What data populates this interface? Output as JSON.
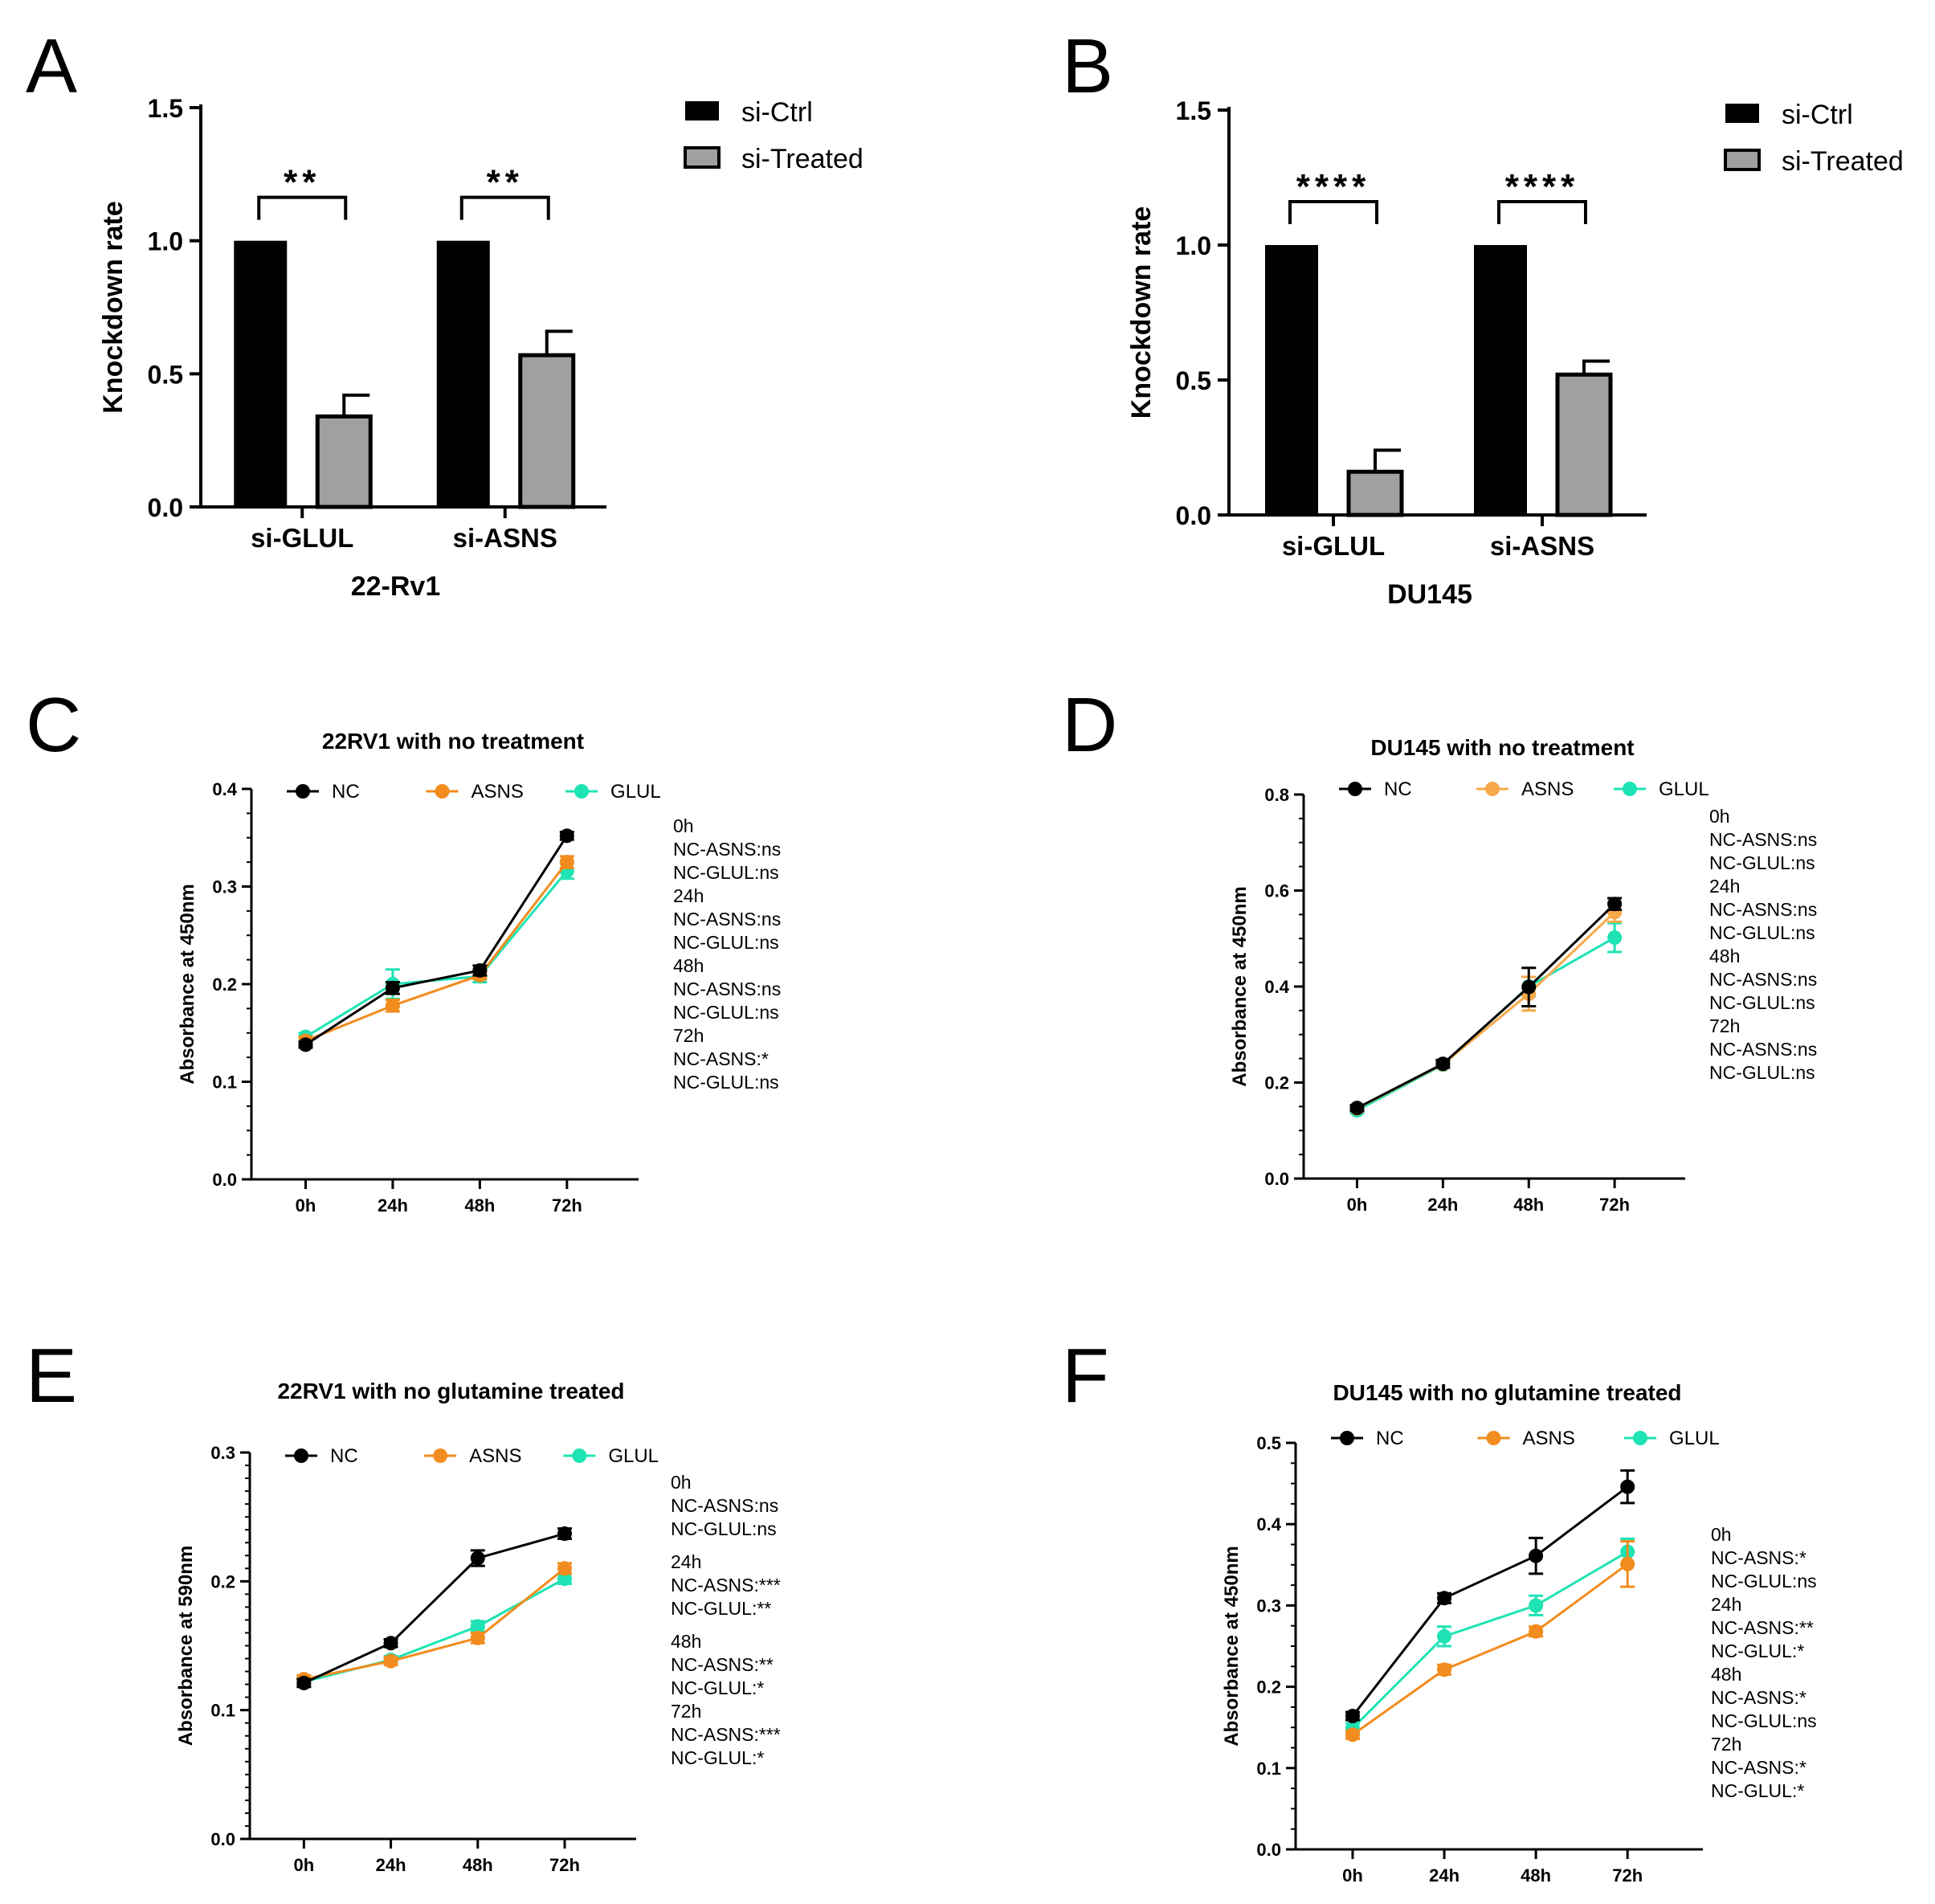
{
  "figure": {
    "panels": [
      {
        "letter": "A",
        "stats_note": [],
        "chart_data": {
          "type": "bar",
          "title": "",
          "xlabel": "22-Rv1",
          "ylabel": "Knockdown rate",
          "ylim": [
            0,
            1.5
          ],
          "yticks": [
            "0.0",
            "0.5",
            "1.0",
            "1.5"
          ],
          "categories": [
            "si-GLUL",
            "si-ASNS"
          ],
          "series": [
            {
              "name": "si-Ctrl",
              "color": "#000000",
              "values": [
                1.0,
                1.0
              ],
              "errors": [
                0,
                0
              ]
            },
            {
              "name": "si-Treated",
              "color": "#a0a0a0",
              "values": [
                0.34,
                0.57
              ],
              "errors": [
                0.08,
                0.09
              ]
            }
          ],
          "significance": [
            "**",
            "**"
          ],
          "legend": "top-right"
        }
      },
      {
        "letter": "B",
        "stats_note": [],
        "chart_data": {
          "type": "bar",
          "title": "",
          "xlabel": "DU145",
          "ylabel": "Knockdown rate",
          "ylim": [
            0,
            1.5
          ],
          "yticks": [
            "0.0",
            "0.5",
            "1.0",
            "1.5"
          ],
          "categories": [
            "si-GLUL",
            "si-ASNS"
          ],
          "series": [
            {
              "name": "si-Ctrl",
              "color": "#000000",
              "values": [
                1.0,
                1.0
              ],
              "errors": [
                0,
                0
              ]
            },
            {
              "name": "si-Treated",
              "color": "#a0a0a0",
              "values": [
                0.16,
                0.52
              ],
              "errors": [
                0.08,
                0.05
              ]
            }
          ],
          "significance": [
            "****",
            "****"
          ],
          "legend": "top-right"
        }
      },
      {
        "letter": "C",
        "stats_note": [
          "0h",
          "NC-ASNS:ns",
          "NC-GLUL:ns",
          "24h",
          "NC-ASNS:ns",
          "NC-GLUL:ns",
          "48h",
          "NC-ASNS:ns",
          "NC-GLUL:ns",
          "72h",
          "NC-ASNS:*",
          "NC-GLUL:ns"
        ],
        "chart_data": {
          "type": "line",
          "title": "22RV1 with no treatment",
          "xlabel": "",
          "ylabel": "Absorbance at 450nm",
          "ylim": [
            0,
            0.4
          ],
          "yticks": [
            "0.0",
            "0.1",
            "0.2",
            "0.3",
            "0.4"
          ],
          "categories": [
            "0h",
            "24h",
            "48h",
            "72h"
          ],
          "series": [
            {
              "name": "NC",
              "color": "#000000",
              "values": [
                0.138,
                0.196,
                0.214,
                0.352
              ],
              "errors": [
                0.003,
                0.006,
                0.005,
                0.004
              ]
            },
            {
              "name": "ASNS",
              "color": "#f28c1e",
              "values": [
                0.142,
                0.178,
                0.209,
                0.325
              ],
              "errors": [
                0.004,
                0.006,
                0.004,
                0.006
              ]
            },
            {
              "name": "GLUL",
              "color": "#1ee3b4",
              "values": [
                0.146,
                0.2,
                0.208,
                0.316
              ],
              "errors": [
                0.004,
                0.015,
                0.006,
                0.008
              ]
            }
          ],
          "legend": "top"
        }
      },
      {
        "letter": "D",
        "stats_note": [
          "0h",
          "NC-ASNS:ns",
          "NC-GLUL:ns",
          "24h",
          "NC-ASNS:ns",
          "NC-GLUL:ns",
          "48h",
          "NC-ASNS:ns",
          "NC-GLUL:ns",
          "72h",
          "NC-ASNS:ns",
          "NC-GLUL:ns"
        ],
        "chart_data": {
          "type": "line",
          "title": "DU145 with no  treatment",
          "xlabel": "",
          "ylabel": "Absorbance at 450nm",
          "ylim": [
            0,
            0.8
          ],
          "yticks": [
            "0.0",
            "0.2",
            "0.4",
            "0.6",
            "0.8"
          ],
          "categories": [
            "0h",
            "24h",
            "48h",
            "72h"
          ],
          "series": [
            {
              "name": "NC",
              "color": "#000000",
              "values": [
                0.147,
                0.239,
                0.399,
                0.572
              ],
              "errors": [
                0.006,
                0.008,
                0.04,
                0.012
              ]
            },
            {
              "name": "ASNS",
              "color": "#f7a94a",
              "values": [
                0.146,
                0.238,
                0.385,
                0.555
              ],
              "errors": [
                0.006,
                0.006,
                0.035,
                0.02
              ]
            },
            {
              "name": "GLUL",
              "color": "#1ee3b4",
              "values": [
                0.142,
                0.237,
                0.4,
                0.502
              ],
              "errors": [
                0.006,
                0.006,
                0.02,
                0.03
              ]
            }
          ],
          "legend": "top"
        }
      },
      {
        "letter": "E",
        "stats_note": [
          "0h",
          "NC-ASNS:ns",
          "NC-GLUL:ns",
          "24h",
          "NC-ASNS:***",
          "NC-GLUL:**",
          "48h",
          "NC-ASNS:**",
          "NC-GLUL:*",
          "72h",
          "NC-ASNS:***",
          "NC-GLUL:*"
        ],
        "chart_data": {
          "type": "line",
          "title": "22RV1 with no glutamine treated",
          "xlabel": "",
          "ylabel": "Absorbance at 590nm",
          "ylim": [
            0,
            0.3
          ],
          "yticks": [
            "0.0",
            "0.1",
            "0.2",
            "0.3"
          ],
          "categories": [
            "0h",
            "24h",
            "48h",
            "72h"
          ],
          "series": [
            {
              "name": "NC",
              "color": "#000000",
              "values": [
                0.121,
                0.152,
                0.218,
                0.237
              ],
              "errors": [
                0.003,
                0.003,
                0.006,
                0.004
              ]
            },
            {
              "name": "ASNS",
              "color": "#f28c1e",
              "values": [
                0.124,
                0.138,
                0.156,
                0.21
              ],
              "errors": [
                0.003,
                0.003,
                0.004,
                0.004
              ]
            },
            {
              "name": "GLUL",
              "color": "#1ee3b4",
              "values": [
                0.122,
                0.139,
                0.165,
                0.202
              ],
              "errors": [
                0.003,
                0.003,
                0.004,
                0.004
              ]
            }
          ],
          "legend": "top"
        }
      },
      {
        "letter": "F",
        "stats_note": [
          "0h",
          "NC-ASNS:*",
          "NC-GLUL:ns",
          "24h",
          "NC-ASNS:**",
          "NC-GLUL:*",
          "48h",
          "NC-ASNS:*",
          "NC-GLUL:ns",
          "72h",
          "NC-ASNS:*",
          "NC-GLUL:*"
        ],
        "chart_data": {
          "type": "line",
          "title": "DU145 with no glutamine treated",
          "xlabel": "",
          "ylabel": "Absorbance at 450nm",
          "ylim": [
            0,
            0.5
          ],
          "yticks": [
            "0.0",
            "0.1",
            "0.2",
            "0.3",
            "0.4",
            "0.5"
          ],
          "categories": [
            "0h",
            "24h",
            "48h",
            "72h"
          ],
          "series": [
            {
              "name": "NC",
              "color": "#000000",
              "values": [
                0.164,
                0.309,
                0.361,
                0.446
              ],
              "errors": [
                0.005,
                0.006,
                0.022,
                0.02
              ]
            },
            {
              "name": "ASNS",
              "color": "#f28c1e",
              "values": [
                0.141,
                0.221,
                0.268,
                0.351
              ],
              "errors": [
                0.005,
                0.006,
                0.006,
                0.028
              ]
            },
            {
              "name": "GLUL",
              "color": "#1ee3b4",
              "values": [
                0.149,
                0.262,
                0.3,
                0.366
              ],
              "errors": [
                0.006,
                0.012,
                0.012,
                0.016
              ]
            }
          ],
          "legend": "top"
        }
      }
    ]
  }
}
